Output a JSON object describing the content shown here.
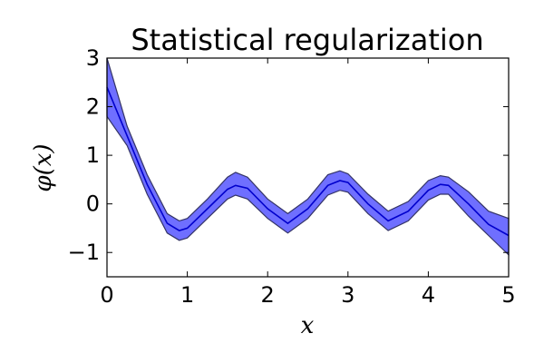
{
  "chart_data": {
    "type": "line",
    "title": "Statistical regularization",
    "xlabel": "x",
    "ylabel": "φ(x)",
    "xlim": [
      0,
      5
    ],
    "ylim": [
      -1.5,
      3
    ],
    "x_ticks": [
      "0",
      "1",
      "2",
      "3",
      "4",
      "5"
    ],
    "y_ticks": [
      "3",
      "2",
      "1",
      "0",
      "−1"
    ],
    "x_tick_values": [
      0,
      1,
      2,
      3,
      4,
      5
    ],
    "y_tick_values": [
      3,
      2,
      1,
      0,
      -1
    ],
    "grid": false,
    "colors": {
      "line": "#0000cc",
      "band_fill": "#6f6fff",
      "band_edge": "#333366"
    },
    "series": [
      {
        "kind": "line",
        "x": [
          0,
          0.25,
          0.5,
          0.75,
          0.9,
          1.0,
          1.25,
          1.5,
          1.6,
          1.75,
          2.0,
          2.25,
          2.5,
          2.75,
          2.9,
          3.0,
          3.25,
          3.5,
          3.75,
          4.0,
          4.15,
          4.25,
          4.5,
          4.75,
          5.0
        ],
        "y": [
          2.4,
          1.4,
          0.4,
          -0.4,
          -0.55,
          -0.5,
          -0.1,
          0.3,
          0.38,
          0.32,
          -0.1,
          -0.4,
          -0.1,
          0.38,
          0.48,
          0.44,
          0.0,
          -0.35,
          -0.15,
          0.28,
          0.4,
          0.38,
          0.0,
          -0.42,
          -0.65
        ]
      },
      {
        "kind": "band",
        "x": [
          0,
          0.25,
          0.5,
          0.75,
          0.9,
          1.0,
          1.25,
          1.5,
          1.6,
          1.75,
          2.0,
          2.25,
          2.5,
          2.75,
          2.9,
          3.0,
          3.25,
          3.5,
          3.75,
          4.0,
          4.15,
          4.25,
          4.5,
          4.75,
          5.0
        ],
        "upper": [
          3.0,
          1.6,
          0.6,
          -0.2,
          -0.35,
          -0.3,
          0.1,
          0.55,
          0.65,
          0.55,
          0.1,
          -0.2,
          0.1,
          0.6,
          0.68,
          0.62,
          0.2,
          -0.15,
          0.05,
          0.48,
          0.58,
          0.55,
          0.25,
          -0.15,
          -0.3
        ],
        "lower": [
          1.8,
          1.2,
          0.2,
          -0.6,
          -0.75,
          -0.7,
          -0.3,
          0.1,
          0.18,
          0.1,
          -0.3,
          -0.6,
          -0.3,
          0.18,
          0.28,
          0.24,
          -0.2,
          -0.55,
          -0.35,
          0.08,
          0.2,
          0.2,
          -0.25,
          -0.65,
          -1.05
        ]
      }
    ]
  }
}
